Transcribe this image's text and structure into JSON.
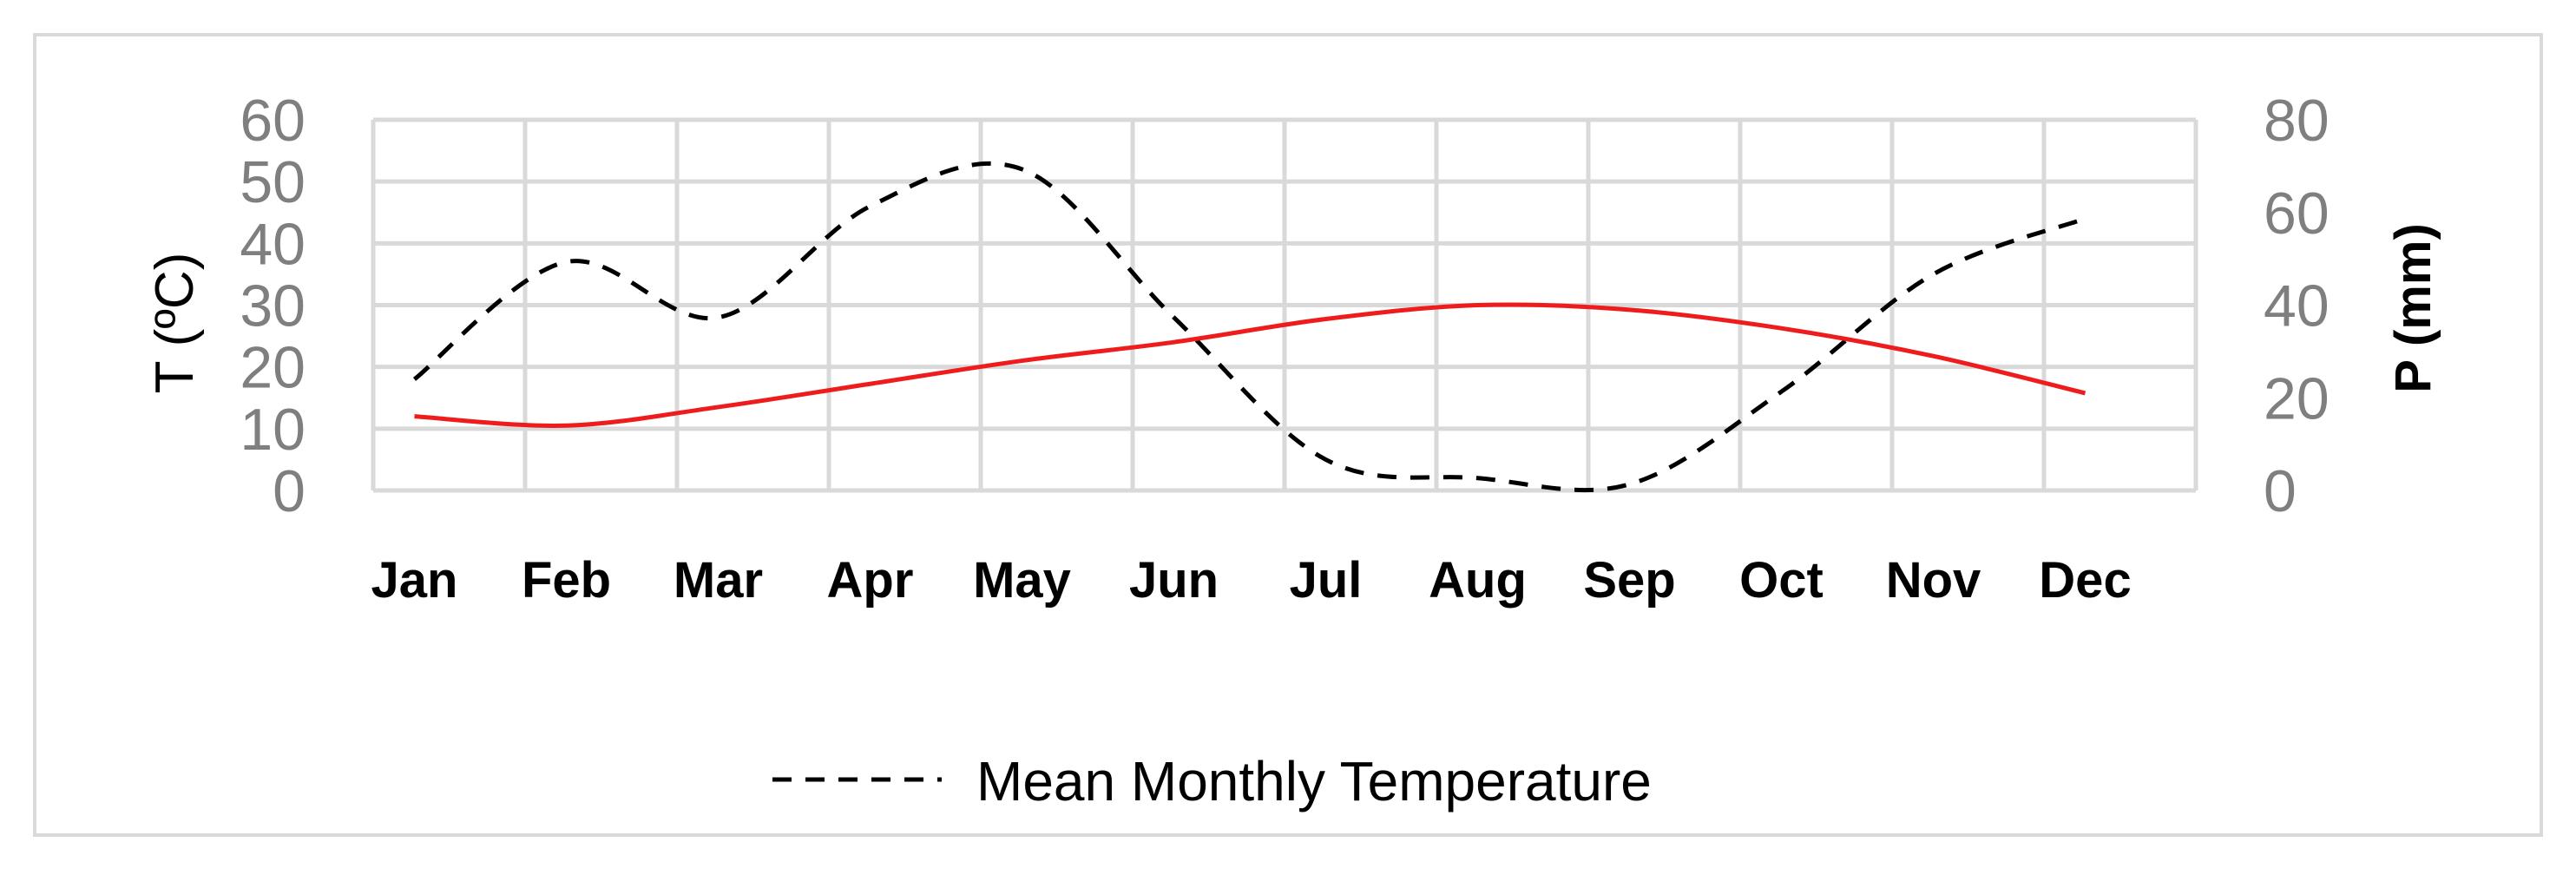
{
  "chart_data": {
    "type": "line",
    "categories": [
      "Jan",
      "Feb",
      "Mar",
      "Apr",
      "May",
      "Jun",
      "Jul",
      "Aug",
      "Sep",
      "Oct",
      "Nov",
      "Dec"
    ],
    "y_left": {
      "label": "T (ºC)",
      "ylim": [
        0,
        60
      ],
      "ticks": [
        "0",
        "10",
        "20",
        "30",
        "40",
        "50",
        "60"
      ]
    },
    "y_right": {
      "label": "P (mm)",
      "ylim": [
        0,
        80
      ],
      "ticks": [
        "0",
        "20",
        "40",
        "60",
        "80"
      ]
    },
    "series": [
      {
        "name": "Mean Monthly Temperature",
        "axis": "left",
        "style": "dashed",
        "color": "#000000",
        "values": [
          18,
          37,
          28,
          46,
          52,
          28,
          5,
          2,
          1,
          16,
          35,
          44
        ]
      },
      {
        "axis": "right",
        "style": "solid",
        "color": "#ee1c1c",
        "values": [
          16,
          14,
          18,
          23,
          28,
          32,
          37,
          40,
          39,
          35,
          29,
          21
        ]
      }
    ],
    "grid": true,
    "legend": {
      "position": "bottom",
      "entries": [
        "Mean Monthly Temperature"
      ]
    }
  }
}
